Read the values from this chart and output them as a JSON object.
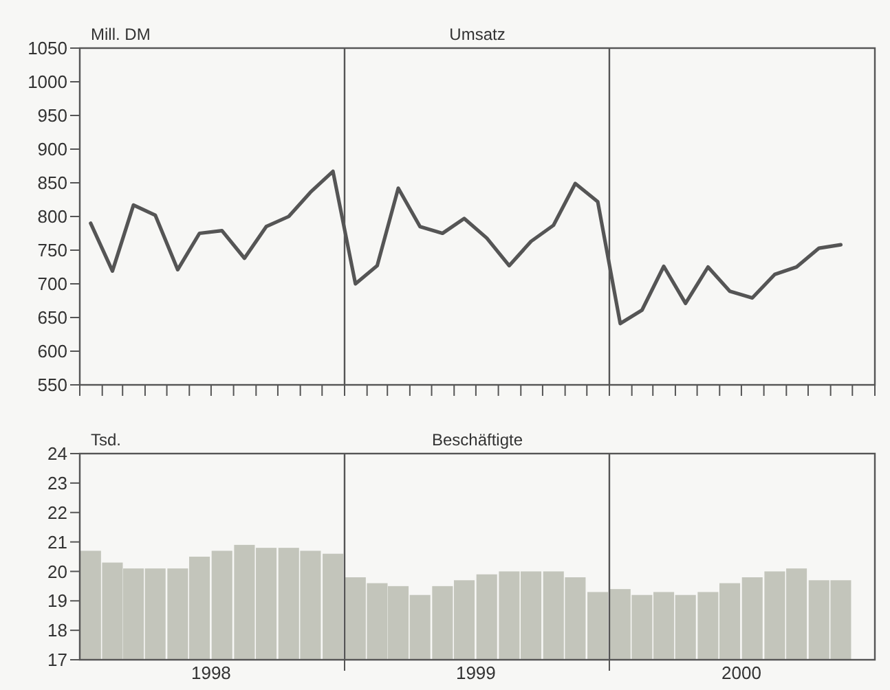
{
  "chart_data": [
    {
      "type": "line",
      "title": "Umsatz",
      "ylabel": "Mill. DM",
      "ylim": [
        550,
        1050
      ],
      "yticks": [
        550,
        600,
        650,
        700,
        750,
        800,
        850,
        900,
        950,
        1000,
        1050
      ],
      "xlim": [
        "1998-01-01",
        "2001-01-01"
      ],
      "xticks": [
        {
          "value": "1998-01-01",
          "label": null
        },
        {
          "value": "1998-02-01",
          "label": null
        },
        {
          "value": "1998-03-01",
          "label": null
        },
        {
          "value": "1998-04-01",
          "label": null
        },
        {
          "value": "1998-05-01",
          "label": null
        },
        {
          "value": "1998-06-01",
          "label": null
        },
        {
          "value": "1998-07-01",
          "label": null
        },
        {
          "value": "1998-08-01",
          "label": null
        },
        {
          "value": "1998-09-01",
          "label": null
        },
        {
          "value": "1998-10-01",
          "label": null
        },
        {
          "value": "1998-11-01",
          "label": null
        },
        {
          "value": "1998-12-01",
          "label": null
        },
        {
          "value": "1999-01-01",
          "label": null
        },
        {
          "value": "1999-02-01",
          "label": null
        },
        {
          "value": "1999-03-01",
          "label": null
        },
        {
          "value": "1999-04-01",
          "label": null
        },
        {
          "value": "1999-05-01",
          "label": null
        },
        {
          "value": "1999-06-01",
          "label": null
        },
        {
          "value": "1999-07-01",
          "label": null
        },
        {
          "value": "1999-08-01",
          "label": null
        },
        {
          "value": "1999-09-01",
          "label": null
        },
        {
          "value": "1999-10-01",
          "label": null
        },
        {
          "value": "1999-11-01",
          "label": null
        },
        {
          "value": "1999-12-01",
          "label": null
        },
        {
          "value": "2000-01-01",
          "label": null
        },
        {
          "value": "2000-02-01",
          "label": null
        },
        {
          "value": "2000-03-01",
          "label": null
        },
        {
          "value": "2000-04-01",
          "label": null
        },
        {
          "value": "2000-05-01",
          "label": null
        },
        {
          "value": "2000-06-01",
          "label": null
        },
        {
          "value": "2000-07-01",
          "label": null
        },
        {
          "value": "2000-08-01",
          "label": null
        },
        {
          "value": "2000-09-01",
          "label": null
        },
        {
          "value": "2000-10-01",
          "label": null
        },
        {
          "value": "2000-11-01",
          "label": null
        },
        {
          "value": "2000-12-01",
          "label": null
        },
        {
          "value": "2001-01-01",
          "label": null
        }
      ],
      "tick_labels": "y",
      "grid": false,
      "marker": "none",
      "line_style": "solid",
      "x": [
        "1998-01-16",
        "1998-02-15",
        "1998-03-16",
        "1998-04-15",
        "1998-05-16",
        "1998-06-15",
        "1998-07-16",
        "1998-08-16",
        "1998-09-15",
        "1998-10-16",
        "1998-11-15",
        "1998-12-16",
        "1999-01-16",
        "1999-02-15",
        "1999-03-16",
        "1999-04-15",
        "1999-05-16",
        "1999-06-15",
        "1999-07-16",
        "1999-08-16",
        "1999-09-15",
        "1999-10-16",
        "1999-11-15",
        "1999-12-16",
        "2000-01-16",
        "2000-02-15",
        "2000-03-16",
        "2000-04-15",
        "2000-05-16",
        "2000-06-15",
        "2000-07-16",
        "2000-08-16",
        "2000-09-15",
        "2000-10-16",
        "2000-11-15"
      ],
      "series": [
        {
          "color": "#555555",
          "values": [
            790,
            719,
            817,
            802,
            721,
            775,
            779,
            738,
            785,
            800,
            836,
            867,
            700,
            727,
            842,
            785,
            775,
            797,
            768,
            727,
            763,
            787,
            849,
            822,
            641,
            661,
            726,
            671,
            725,
            689,
            679,
            714,
            725,
            753,
            758
          ]
        }
      ],
      "ref_lines": [
        {
          "axis": "x",
          "value": "1999-01-01",
          "color": "#555555"
        },
        {
          "axis": "x",
          "value": "2000-01-01",
          "color": "#555555"
        }
      ]
    },
    {
      "type": "bar",
      "title": "Beschäftigte",
      "ylabel": "Tsd.",
      "ylim": [
        17,
        24
      ],
      "yticks": [
        17,
        18,
        19,
        20,
        21,
        22,
        23,
        24
      ],
      "xlim": [
        "1998-01-01",
        "2001-01-01"
      ],
      "xticks": [
        {
          "value": "1998-07-01",
          "label": "1998"
        },
        {
          "value": "1999-01-01",
          "label": null
        },
        {
          "value": "1999-07-01",
          "label": "1999"
        },
        {
          "value": "2000-01-01",
          "label": null
        },
        {
          "value": "2000-07-01",
          "label": "2000"
        }
      ],
      "grid": false,
      "x": [
        "1998-01-16",
        "1998-02-15",
        "1998-03-16",
        "1998-04-15",
        "1998-05-16",
        "1998-06-15",
        "1998-07-16",
        "1998-08-16",
        "1998-09-15",
        "1998-10-16",
        "1998-11-15",
        "1998-12-16",
        "1999-01-16",
        "1999-02-15",
        "1999-03-16",
        "1999-04-15",
        "1999-05-16",
        "1999-06-15",
        "1999-07-16",
        "1999-08-16",
        "1999-09-15",
        "1999-10-16",
        "1999-11-15",
        "1999-12-16",
        "2000-01-16",
        "2000-02-15",
        "2000-03-16",
        "2000-04-15",
        "2000-05-16",
        "2000-06-15",
        "2000-07-16",
        "2000-08-16",
        "2000-09-15",
        "2000-10-16",
        "2000-11-15"
      ],
      "series": [
        {
          "color": "#c3c5bb",
          "values": [
            20.7,
            20.3,
            20.1,
            20.1,
            20.1,
            20.5,
            20.7,
            20.9,
            20.8,
            20.8,
            20.7,
            20.6,
            19.8,
            19.6,
            19.5,
            19.2,
            19.5,
            19.7,
            19.9,
            20.0,
            20.0,
            20.0,
            19.8,
            19.3,
            19.4,
            19.2,
            19.3,
            19.2,
            19.3,
            19.6,
            19.8,
            20.0,
            20.1,
            19.7,
            19.7
          ]
        }
      ],
      "ref_lines": [
        {
          "axis": "x",
          "value": "1999-01-01",
          "color": "#555555"
        },
        {
          "axis": "x",
          "value": "2000-01-01",
          "color": "#555555"
        }
      ]
    }
  ]
}
